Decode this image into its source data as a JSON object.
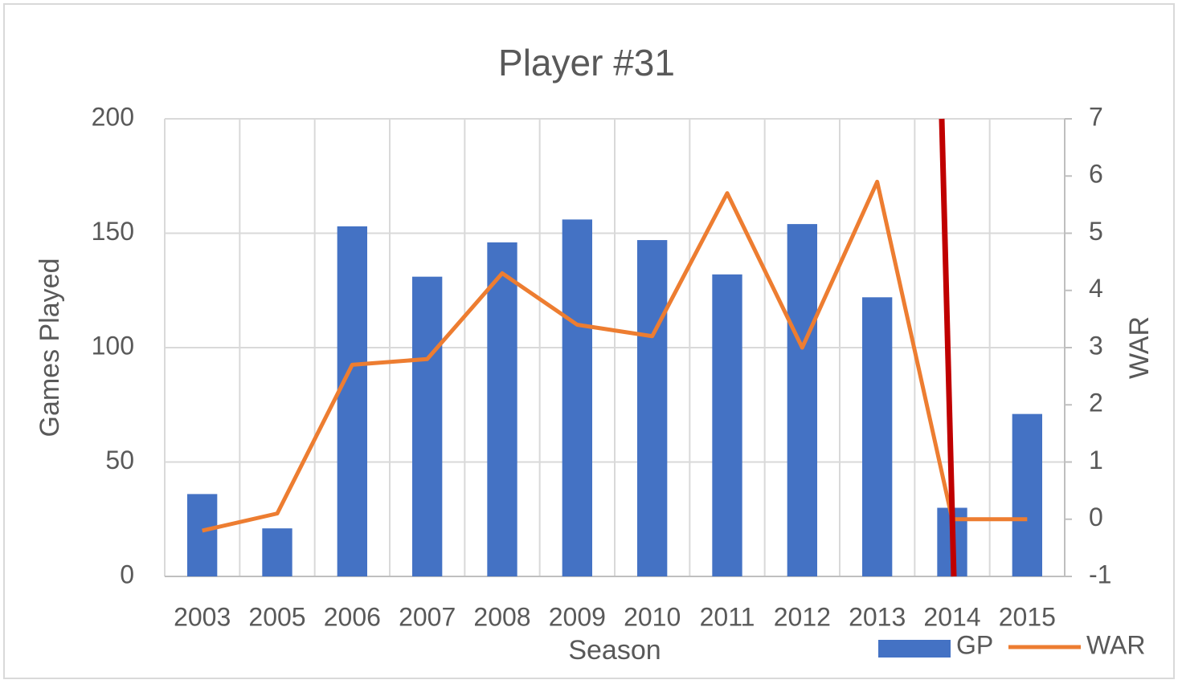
{
  "chart_data": {
    "type": "bar-line",
    "title": "Player #31",
    "x_label": "Season",
    "y_label": "Games Played",
    "y2_label": "WAR",
    "categories": [
      "2003",
      "2005",
      "2006",
      "2007",
      "2008",
      "2009",
      "2010",
      "2011",
      "2012",
      "2013",
      "2014",
      "2015"
    ],
    "series": [
      {
        "name": "GP",
        "type": "bar",
        "color": "#4472c4",
        "values": [
          36,
          21,
          153,
          131,
          146,
          156,
          147,
          132,
          154,
          122,
          30,
          71
        ]
      },
      {
        "name": "WAR",
        "type": "line",
        "axis": "y2",
        "color": "#ed7d31",
        "values": [
          -0.2,
          0.1,
          2.7,
          2.8,
          4.3,
          3.4,
          3.2,
          5.7,
          3.0,
          5.9,
          0,
          0
        ]
      }
    ],
    "ylim": [
      0,
      200
    ],
    "yticks": [
      0,
      50,
      100,
      150,
      200
    ],
    "y2lim": [
      -1,
      7
    ],
    "y2ticks": [
      -1,
      0,
      1,
      2,
      3,
      4,
      5,
      6,
      7
    ],
    "grid": true,
    "legend": "bottom-right"
  }
}
